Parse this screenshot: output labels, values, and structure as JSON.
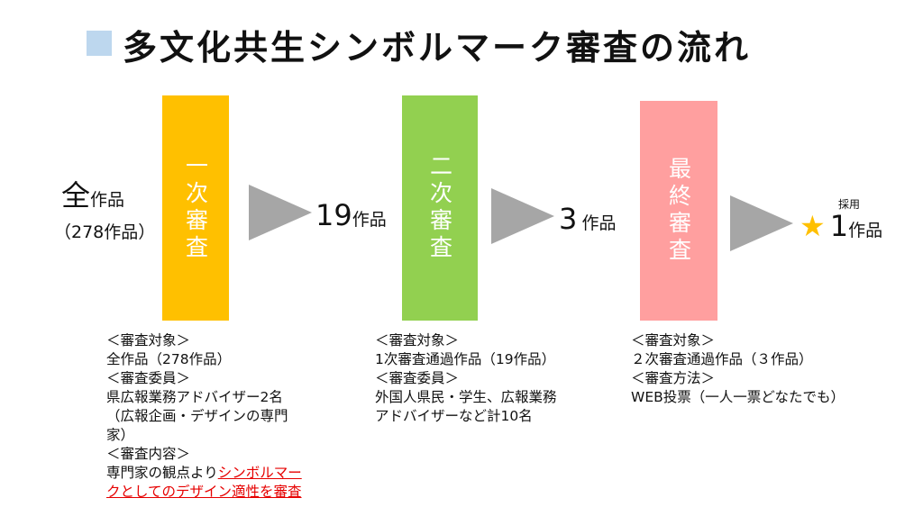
{
  "title": "多文化共生シンボルマーク審査の流れ",
  "start": {
    "big": "全",
    "small": "作品",
    "sub": "（278作品）"
  },
  "stages": [
    {
      "label": "一次審査",
      "color": "#ffc000"
    },
    {
      "label": "二次審査",
      "color": "#92d050"
    },
    {
      "label": "最終審査",
      "color": "#ff9f9f"
    }
  ],
  "results": [
    {
      "num": "19",
      "unit": "作品"
    },
    {
      "num": "3",
      "unit": "作品"
    },
    {
      "num": "1",
      "unit": "作品",
      "note": "採用",
      "icon": "star-icon"
    }
  ],
  "details": [
    {
      "lines": "＜審査対象＞\n全作品（278作品）\n＜審査委員＞\n県広報業務アドバイザー2名\n（広報企画・デザインの専門\n家）\n＜審査内容＞\n専門家の観点より",
      "red": "シンボルマー\nクとしてのデザイン適性を審査"
    },
    {
      "lines": "＜審査対象＞\n1次審査通過作品（19作品）\n＜審査委員＞\n外国人県民・学生、広報業務\nアドバイザーなど計10名"
    },
    {
      "lines": "＜審査対象＞\n２次審査通過作品（３作品）\n＜審査方法＞\nWEB投票（一人一票どなたでも）"
    }
  ]
}
